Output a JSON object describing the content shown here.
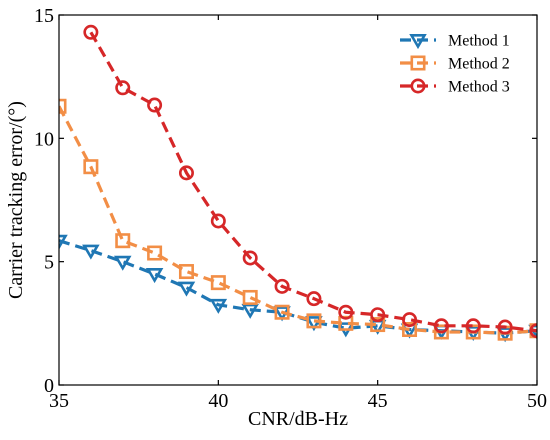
{
  "chart_data": {
    "type": "line",
    "title": "",
    "xlabel": "CNR/dB-Hz",
    "ylabel": "Carrier tracking error/(°)",
    "xlim": [
      35,
      50
    ],
    "ylim": [
      0,
      15
    ],
    "xticks": [
      35,
      40,
      45,
      50
    ],
    "yticks": [
      0,
      5,
      10,
      15
    ],
    "xtick_labels": [
      "35",
      "40",
      "45",
      "50"
    ],
    "ytick_labels": [
      "0",
      "5",
      "10",
      "15"
    ],
    "grid": false,
    "legend_position": "top-right",
    "series": [
      {
        "name": "Method 1",
        "color": "#1f77b4",
        "marker": "triangle-down",
        "line_style": "dashed",
        "x": [
          35,
          36,
          37,
          38,
          39,
          40,
          41,
          42,
          43,
          44,
          45,
          46,
          47,
          48,
          49,
          50
        ],
        "y": [
          5.85,
          5.45,
          5.0,
          4.5,
          3.95,
          3.25,
          3.05,
          2.95,
          2.55,
          2.3,
          2.4,
          2.25,
          2.2,
          2.15,
          2.1,
          2.2
        ]
      },
      {
        "name": "Method 2",
        "color": "#f28e46",
        "marker": "square",
        "line_style": "dashed",
        "x": [
          35,
          36,
          37,
          38,
          39,
          40,
          41,
          42,
          43,
          44,
          45,
          46,
          47,
          48,
          49,
          50
        ],
        "y": [
          11.3,
          8.85,
          5.85,
          5.35,
          4.6,
          4.15,
          3.55,
          2.95,
          2.6,
          2.5,
          2.45,
          2.25,
          2.15,
          2.15,
          2.1,
          2.2
        ]
      },
      {
        "name": "Method 3",
        "color": "#d62728",
        "marker": "circle",
        "line_style": "dashed",
        "x": [
          36,
          37,
          38,
          39,
          40,
          41,
          42,
          43,
          44,
          45,
          46,
          47,
          48,
          49,
          50
        ],
        "y": [
          14.3,
          12.05,
          11.35,
          8.6,
          6.65,
          5.15,
          4.0,
          3.5,
          2.95,
          2.85,
          2.65,
          2.4,
          2.4,
          2.35,
          2.2
        ]
      }
    ]
  }
}
